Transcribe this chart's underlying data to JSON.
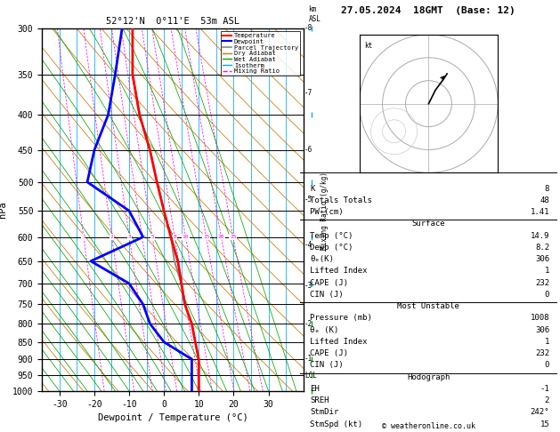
{
  "title_left": "52°12'N  0°11'E  53m ASL",
  "title_right": "27.05.2024  18GMT  (Base: 12)",
  "xlabel": "Dewpoint / Temperature (°C)",
  "ylabel_left": "hPa",
  "pressure_levels": [
    300,
    350,
    400,
    450,
    500,
    550,
    600,
    650,
    700,
    750,
    800,
    850,
    900,
    950,
    1000
  ],
  "temp_x": [
    -9,
    -9,
    -7,
    -4,
    -2,
    0,
    2,
    4,
    5,
    6,
    8,
    9,
    10,
    10,
    10
  ],
  "temp_p": [
    300,
    350,
    400,
    450,
    500,
    550,
    600,
    650,
    700,
    750,
    800,
    850,
    900,
    950,
    1000
  ],
  "dewp_x": [
    -12,
    -14,
    -16,
    -20,
    -22,
    -10,
    -6,
    -21,
    -10,
    -6,
    -4,
    0,
    8,
    8,
    8
  ],
  "dewp_p": [
    300,
    350,
    400,
    450,
    500,
    550,
    600,
    650,
    700,
    750,
    800,
    850,
    900,
    950,
    1000
  ],
  "parcel_x": [
    -9,
    -9,
    -7,
    -4,
    -2,
    0,
    2,
    3,
    5,
    6,
    8,
    9,
    10,
    10,
    10
  ],
  "parcel_p": [
    300,
    350,
    400,
    450,
    500,
    550,
    600,
    650,
    700,
    750,
    800,
    850,
    900,
    950,
    1000
  ],
  "xlim": [
    -35,
    40
  ],
  "ylim_log": [
    300,
    1000
  ],
  "temp_color": "#ff0000",
  "dewp_color": "#0000ff",
  "parcel_color": "#888888",
  "dry_adiabat_color": "#cc7700",
  "wet_adiabat_color": "#00aa00",
  "isotherm_color": "#00aaff",
  "mix_ratio_color": "#ff00ff",
  "km_ticks": [
    1,
    2,
    3,
    4,
    5,
    6,
    7,
    8
  ],
  "km_pressures": [
    898,
    800,
    706,
    616,
    530,
    449,
    372,
    300
  ],
  "mix_ratio_vals": [
    1,
    2,
    3,
    4,
    5,
    8,
    10,
    15,
    20,
    25
  ],
  "lcl_pressure": 950,
  "K": 8,
  "TT": 48,
  "PW": 1.41,
  "sfc_temp": "14.9",
  "sfc_dewp": "8.2",
  "sfc_thetae": "306",
  "sfc_li": "1",
  "sfc_cape": "232",
  "sfc_cin": "0",
  "mu_pres": "1008",
  "mu_thetae": "306",
  "mu_li": "1",
  "mu_cape": "232",
  "mu_cin": "0",
  "hodo_EH": "-1",
  "hodo_SREH": "2",
  "hodo_StmDir": "242°",
  "hodo_StmSpd": "15",
  "copyright": "© weatheronline.co.uk"
}
